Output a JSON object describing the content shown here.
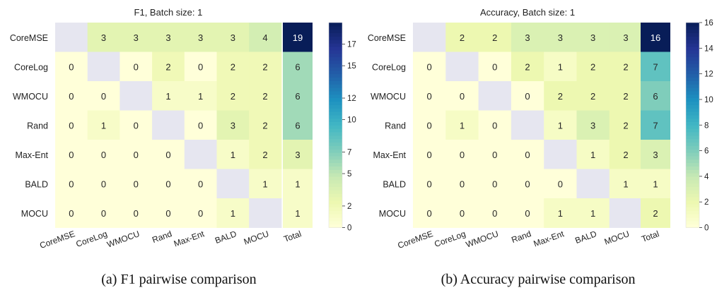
{
  "chart_data": [
    {
      "type": "heatmap",
      "title": "F1, Batch size: 1",
      "caption": "(a) F1 pairwise comparison",
      "rows": [
        "CoreMSE",
        "CoreLog",
        "WMOCU",
        "Rand",
        "Max-Ent",
        "BALD",
        "MOCU"
      ],
      "cols": [
        "CoreMSE",
        "CoreLog",
        "WMOCU",
        "Rand",
        "Max-Ent",
        "BALD",
        "MOCU"
      ],
      "values": [
        [
          null,
          3,
          3,
          3,
          3,
          3,
          4
        ],
        [
          0,
          null,
          0,
          2,
          0,
          2,
          2
        ],
        [
          0,
          0,
          null,
          1,
          1,
          2,
          2
        ],
        [
          0,
          1,
          0,
          null,
          0,
          3,
          2
        ],
        [
          0,
          0,
          0,
          0,
          null,
          1,
          2
        ],
        [
          0,
          0,
          0,
          0,
          0,
          null,
          1
        ],
        [
          0,
          0,
          0,
          0,
          0,
          1,
          null
        ]
      ],
      "total_label": "Total",
      "totals": [
        19,
        6,
        6,
        6,
        3,
        1,
        1
      ],
      "colorbar": {
        "min": 0,
        "max": 19,
        "ticks": [
          0,
          2,
          5,
          7,
          10,
          12,
          15,
          17
        ]
      }
    },
    {
      "type": "heatmap",
      "title": "Accuracy, Batch size: 1",
      "caption": "(b) Accuracy pairwise comparison",
      "rows": [
        "CoreMSE",
        "CoreLog",
        "WMOCU",
        "Rand",
        "Max-Ent",
        "BALD",
        "MOCU"
      ],
      "cols": [
        "CoreMSE",
        "CoreLog",
        "WMOCU",
        "Rand",
        "Max-Ent",
        "BALD",
        "MOCU"
      ],
      "values": [
        [
          null,
          2,
          2,
          3,
          3,
          3,
          3
        ],
        [
          0,
          null,
          0,
          2,
          1,
          2,
          2
        ],
        [
          0,
          0,
          null,
          0,
          2,
          2,
          2
        ],
        [
          0,
          1,
          0,
          null,
          1,
          3,
          2
        ],
        [
          0,
          0,
          0,
          0,
          null,
          1,
          2
        ],
        [
          0,
          0,
          0,
          0,
          0,
          null,
          1
        ],
        [
          0,
          0,
          0,
          0,
          1,
          1,
          null
        ]
      ],
      "total_label": "Total",
      "totals": [
        16,
        7,
        6,
        7,
        3,
        1,
        2
      ],
      "colorbar": {
        "min": 0,
        "max": 16,
        "ticks": [
          0,
          2,
          4,
          6,
          8,
          10,
          12,
          14,
          16
        ]
      }
    }
  ],
  "colors": {
    "diagonal": "#e6e6f0",
    "colormap": [
      "#ffffd9",
      "#edf8b1",
      "#c7e9b4",
      "#7fcdbb",
      "#41b6c4",
      "#1d91c0",
      "#225ea8",
      "#253494",
      "#081d58"
    ]
  }
}
